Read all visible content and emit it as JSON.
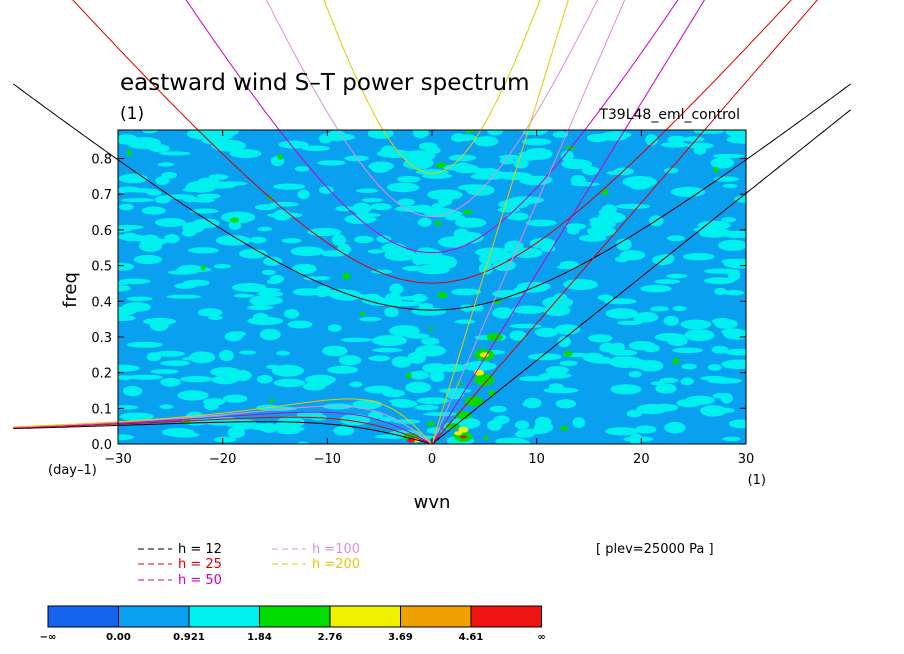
{
  "chart_data": {
    "type": "heatmap",
    "title": "eastward wind S–T power spectrum",
    "subtitle": "(1)",
    "experiment": "T39L48_eml_control",
    "xlabel": "wvn",
    "ylabel": "freq",
    "x_unit": "(1)",
    "y_unit": "(day–1)",
    "xlim": [
      -30,
      30
    ],
    "ylim": [
      0,
      0.88
    ],
    "x_ticks": [
      {
        "v": -30,
        "label": "−30"
      },
      {
        "v": -20,
        "label": "−20"
      },
      {
        "v": -10,
        "label": "−10"
      },
      {
        "v": 0,
        "label": "0"
      },
      {
        "v": 10,
        "label": "10"
      },
      {
        "v": 20,
        "label": "20"
      },
      {
        "v": 30,
        "label": "30"
      }
    ],
    "y_ticks": [
      {
        "v": 0.0,
        "label": "0.0"
      },
      {
        "v": 0.1,
        "label": "0.1"
      },
      {
        "v": 0.2,
        "label": "0.2"
      },
      {
        "v": 0.3,
        "label": "0.3"
      },
      {
        "v": 0.4,
        "label": "0.4"
      },
      {
        "v": 0.5,
        "label": "0.5"
      },
      {
        "v": 0.6,
        "label": "0.6"
      },
      {
        "v": 0.7,
        "label": "0.7"
      },
      {
        "v": 0.8,
        "label": "0.8"
      }
    ],
    "annotation": "[ plev=25000 Pa ]",
    "colorbar": {
      "labels": [
        "−∞",
        "0.00",
        "0.921",
        "1.84",
        "2.76",
        "3.69",
        "4.61",
        "∞"
      ],
      "colors": [
        "#1464f0",
        "#0aa0f0",
        "#00f0f0",
        "#00dc00",
        "#f0f000",
        "#f0a000",
        "#f01414"
      ]
    },
    "dispersion_curves": [
      {
        "label": "h = 12",
        "h": 12,
        "color": "#000000"
      },
      {
        "label": "h = 25",
        "h": 25,
        "color": "#dc0000"
      },
      {
        "label": "h = 50",
        "h": 50,
        "color": "#c800c8"
      },
      {
        "label": "h =100",
        "h": 100,
        "color": "#e08ce0"
      },
      {
        "label": "h =200",
        "h": 200,
        "color": "#e6c800"
      }
    ]
  }
}
